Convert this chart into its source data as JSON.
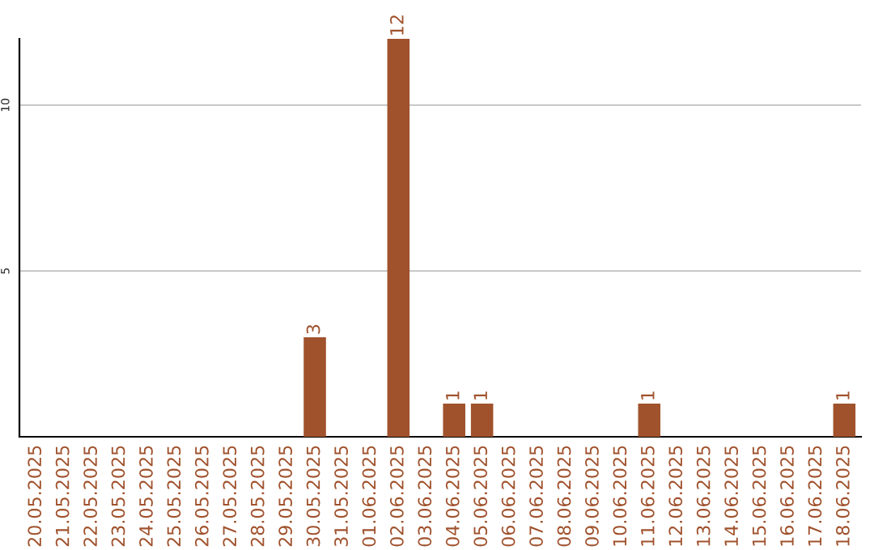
{
  "chart_data": {
    "type": "bar",
    "categories": [
      "20.05.2025",
      "21.05.2025",
      "22.05.2025",
      "23.05.2025",
      "24.05.2025",
      "25.05.2025",
      "26.05.2025",
      "27.05.2025",
      "28.05.2025",
      "29.05.2025",
      "30.05.2025",
      "31.05.2025",
      "01.06.2025",
      "02.06.2025",
      "03.06.2025",
      "04.06.2025",
      "05.06.2025",
      "06.06.2025",
      "07.06.2025",
      "08.06.2025",
      "09.06.2025",
      "10.06.2025",
      "11.06.2025",
      "12.06.2025",
      "13.06.2025",
      "14.06.2025",
      "15.06.2025",
      "16.06.2025",
      "17.06.2025",
      "18.06.2025"
    ],
    "values": [
      0,
      0,
      0,
      0,
      0,
      0,
      0,
      0,
      0,
      0,
      3,
      0,
      0,
      12,
      0,
      1,
      1,
      0,
      0,
      0,
      0,
      0,
      1,
      0,
      0,
      0,
      0,
      0,
      0,
      1
    ],
    "value_labels": [
      null,
      null,
      null,
      null,
      null,
      null,
      null,
      null,
      null,
      null,
      "3",
      null,
      null,
      "12",
      null,
      "1",
      "1",
      null,
      null,
      null,
      null,
      null,
      "1",
      null,
      null,
      null,
      null,
      null,
      null,
      "1"
    ],
    "color": "#a0522d",
    "ylim": [
      0,
      12
    ],
    "yticks": [
      5,
      10
    ],
    "grid": "y"
  }
}
